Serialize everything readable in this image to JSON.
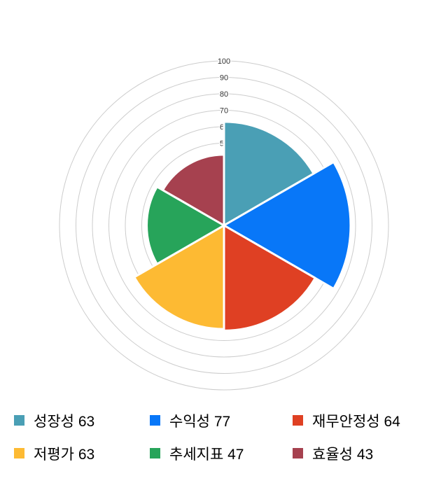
{
  "chart_data": {
    "type": "polar_area",
    "title": "",
    "series": [
      {
        "key": "growth",
        "label": "성장성",
        "value": 63,
        "color": "#4A9FB5"
      },
      {
        "key": "profitability",
        "label": "수익성",
        "value": 77,
        "color": "#0877F8"
      },
      {
        "key": "financial-stability",
        "label": "재무안정성",
        "value": 64,
        "color": "#DF4023"
      },
      {
        "key": "undervaluation",
        "label": "저평가",
        "value": 63,
        "color": "#FDBA33"
      },
      {
        "key": "trend-indicator",
        "label": "추세지표",
        "value": 47,
        "color": "#27A45A"
      },
      {
        "key": "efficiency",
        "label": "효율성",
        "value": 43,
        "color": "#A6414F"
      }
    ],
    "axis": {
      "min": 0,
      "max": 100,
      "ring_values": [
        50,
        60,
        70,
        80,
        90,
        100
      ],
      "tick_labels": [
        "50",
        "60",
        "70",
        "80",
        "90",
        "100"
      ],
      "grid_color": "#CCCCCC",
      "tick_color": "#333333"
    },
    "start_angle_deg": 0,
    "sector_span_deg": 60,
    "wedge_border_color": "#FFFFFF",
    "legend_position": "bottom",
    "background_color": "#FFFFFF"
  }
}
